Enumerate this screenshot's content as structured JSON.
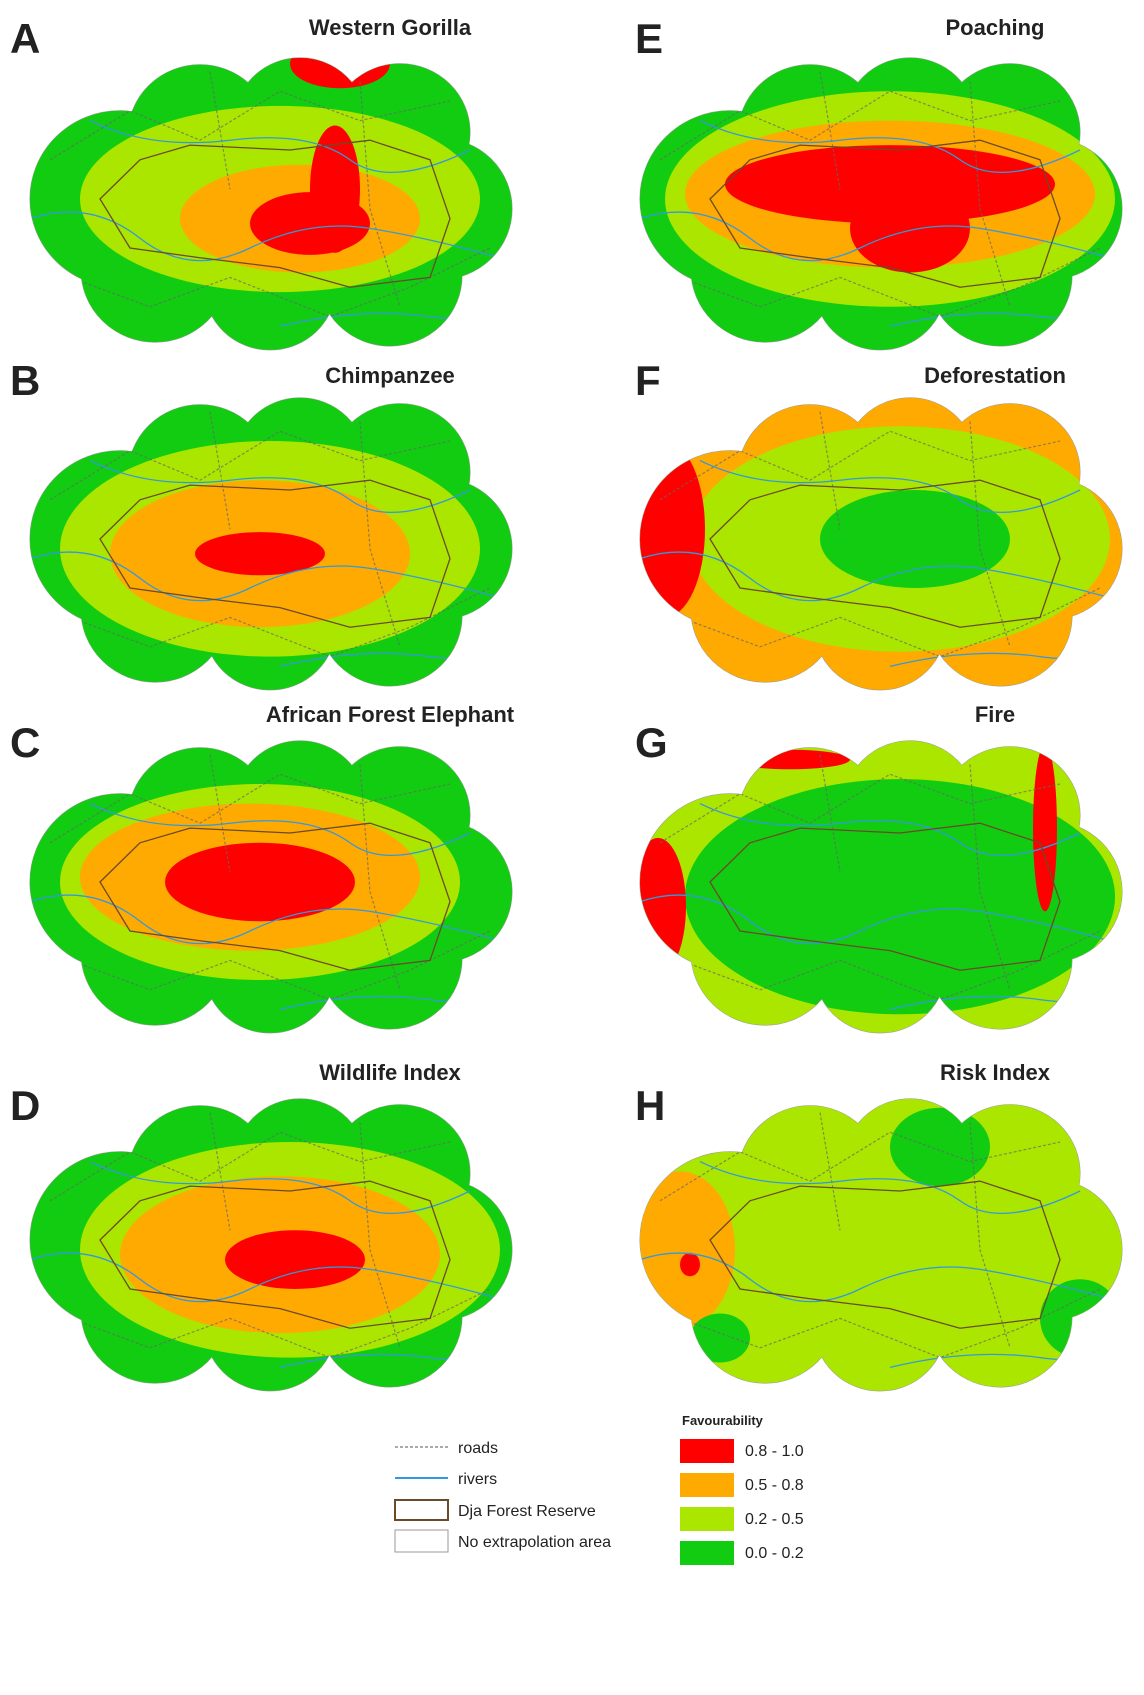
{
  "panels": [
    {
      "letter": "A",
      "title": "Western Gorilla"
    },
    {
      "letter": "B",
      "title": "Chimpanzee"
    },
    {
      "letter": "C",
      "title": "African Forest Elephant"
    },
    {
      "letter": "D",
      "title": "Wildlife Index"
    },
    {
      "letter": "E",
      "title": "Poaching"
    },
    {
      "letter": "F",
      "title": "Deforestation"
    },
    {
      "letter": "G",
      "title": "Fire"
    },
    {
      "letter": "H",
      "title": "Risk Index"
    }
  ],
  "legend": {
    "lines": [
      {
        "label": "roads"
      },
      {
        "label": "rivers"
      },
      {
        "label": "Dja Forest Reserve"
      },
      {
        "label": "No extrapolation area"
      }
    ],
    "favourability": {
      "title": "Favourability",
      "classes": [
        {
          "label": "0.8 - 1.0",
          "color": "#ff0000"
        },
        {
          "label": "0.5 - 0.8",
          "color": "#ffaa00"
        },
        {
          "label": "0.2 - 0.5",
          "color": "#aae600"
        },
        {
          "label": "0.0 - 0.2",
          "color": "#11cc11"
        }
      ]
    }
  }
}
